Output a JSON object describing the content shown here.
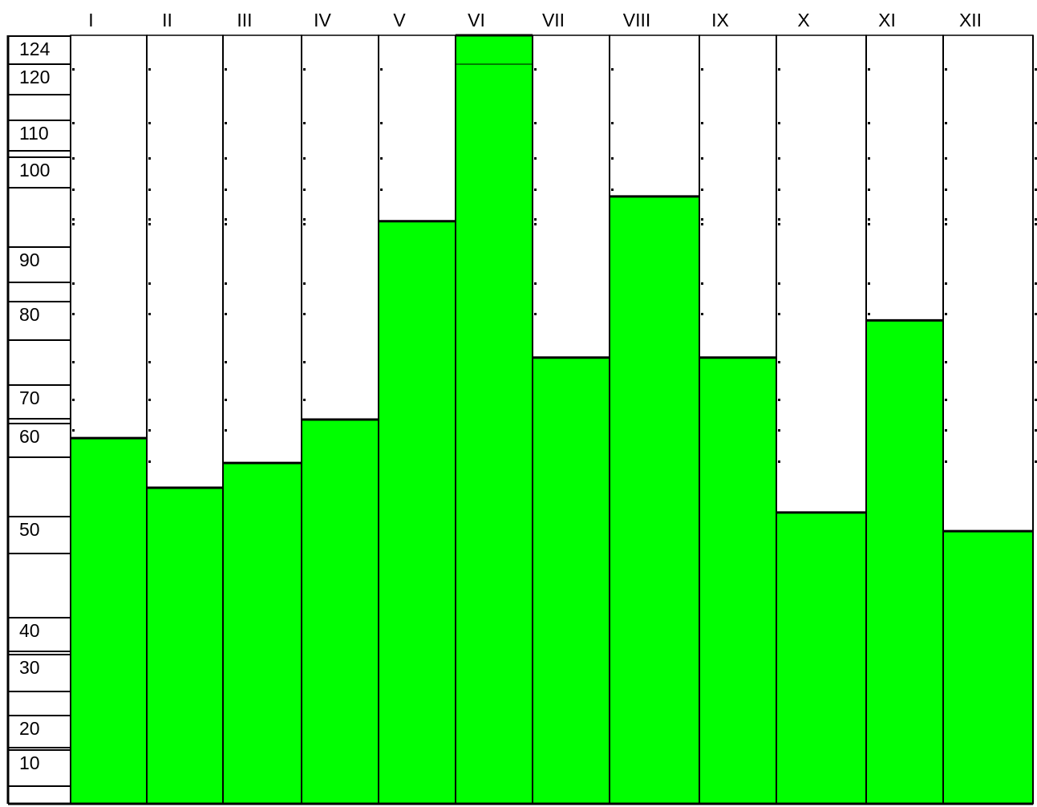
{
  "chart_data": {
    "type": "bar",
    "categories": [
      "I",
      "II",
      "III",
      "IV",
      "V",
      "VI",
      "VII",
      "VIII",
      "IX",
      "X",
      "XI",
      "XII"
    ],
    "values": [
      59,
      51,
      55,
      62,
      94,
      124,
      72,
      98,
      72,
      47,
      78,
      44
    ],
    "y_tick_labels": [
      "124",
      "120",
      "110",
      "100",
      "90",
      "80",
      "70",
      "60",
      "50",
      "40",
      "30",
      "20",
      "10"
    ],
    "ylim": [
      0,
      124
    ],
    "grid": false,
    "legend": "none",
    "title": "",
    "xlabel": "",
    "ylabel": "",
    "colors": {
      "bar": "#00ff00",
      "outline": "#000000",
      "background": "#ffffff"
    }
  }
}
